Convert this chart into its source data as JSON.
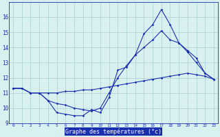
{
  "hours": [
    0,
    1,
    2,
    3,
    4,
    5,
    6,
    7,
    8,
    9,
    10,
    11,
    12,
    13,
    14,
    15,
    16,
    17,
    18,
    19,
    20,
    21,
    22,
    23
  ],
  "line1": [
    11.3,
    11.3,
    11.0,
    11.0,
    10.5,
    9.7,
    9.6,
    9.5,
    9.5,
    9.9,
    9.7,
    10.7,
    12.5,
    12.7,
    13.5,
    14.9,
    15.5,
    16.5,
    15.5,
    14.3,
    13.7,
    13.0,
    12.3,
    11.9
  ],
  "line2": [
    11.3,
    11.3,
    11.0,
    11.0,
    10.5,
    10.3,
    10.2,
    10.0,
    9.9,
    9.8,
    10.0,
    11.0,
    12.0,
    12.8,
    13.5,
    14.0,
    14.5,
    15.1,
    14.5,
    14.3,
    13.8,
    13.3,
    12.3,
    11.9
  ],
  "line3": [
    11.3,
    11.3,
    11.0,
    11.0,
    11.0,
    11.0,
    11.1,
    11.1,
    11.2,
    11.2,
    11.3,
    11.4,
    11.5,
    11.6,
    11.7,
    11.8,
    11.9,
    12.0,
    12.1,
    12.2,
    12.3,
    12.2,
    12.1,
    11.9
  ],
  "bg_color": "#d8f0f0",
  "line_color": "#1a2fb0",
  "grid_color": "#aacfcf",
  "xlabel": "Graphe des températures (°c)",
  "ylabel_ticks": [
    9,
    10,
    11,
    12,
    13,
    14,
    15,
    16
  ],
  "ylim": [
    9,
    17
  ],
  "xlim": [
    -0.5,
    23.5
  ],
  "xlabel_color": "#ffffff",
  "xlabel_bg": "#1a2fb0"
}
